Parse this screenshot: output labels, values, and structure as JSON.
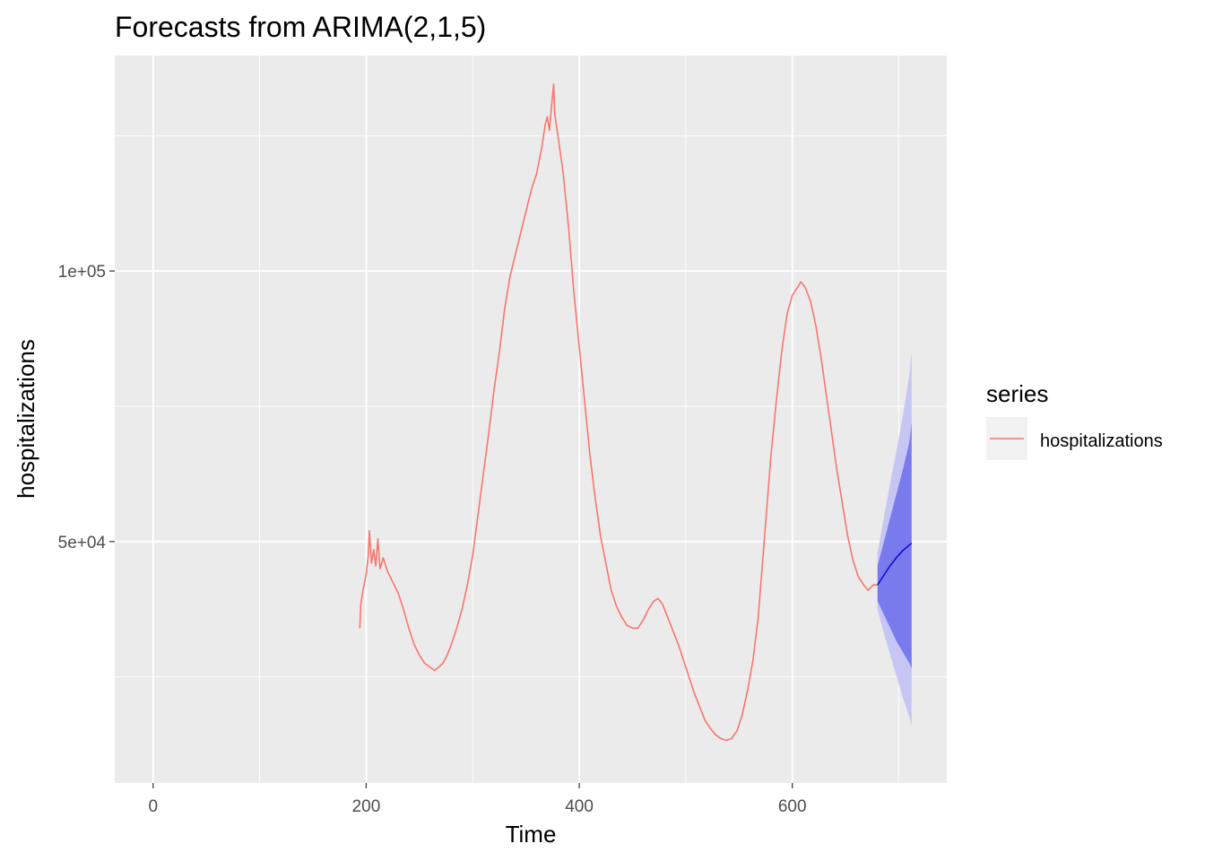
{
  "chart_data": {
    "type": "line",
    "title": "Forecasts from ARIMA(2,1,5)",
    "xlabel": "Time",
    "ylabel": "hospitalizations",
    "xlim": [
      -36,
      745
    ],
    "ylim": [
      5400,
      139800
    ],
    "x_ticks": [
      0,
      200,
      400,
      600
    ],
    "x_tick_labels": [
      "0",
      "200",
      "400",
      "600"
    ],
    "y_ticks": [
      50000,
      100000
    ],
    "y_tick_labels": [
      "5e+04",
      "1e+05"
    ],
    "grid": true,
    "background": "#ebebeb",
    "legend": {
      "title": "series",
      "placement": "right",
      "entries": [
        {
          "label": "hospitalizations",
          "color": "#f8766d"
        }
      ]
    },
    "series": [
      {
        "name": "hospitalizations",
        "color": "#f8766d",
        "points": [
          [
            194,
            34000
          ],
          [
            195,
            38500
          ],
          [
            197,
            41000
          ],
          [
            200,
            44000
          ],
          [
            202,
            47500
          ],
          [
            203,
            52000
          ],
          [
            205,
            46000
          ],
          [
            207,
            48500
          ],
          [
            209,
            45500
          ],
          [
            211,
            50500
          ],
          [
            213,
            45000
          ],
          [
            216,
            47000
          ],
          [
            220,
            44500
          ],
          [
            225,
            42500
          ],
          [
            230,
            40500
          ],
          [
            235,
            37500
          ],
          [
            240,
            34000
          ],
          [
            245,
            31000
          ],
          [
            250,
            29000
          ],
          [
            255,
            27500
          ],
          [
            260,
            26800
          ],
          [
            264,
            26200
          ],
          [
            268,
            26800
          ],
          [
            272,
            27500
          ],
          [
            276,
            29000
          ],
          [
            280,
            31000
          ],
          [
            285,
            34000
          ],
          [
            290,
            37500
          ],
          [
            295,
            42000
          ],
          [
            300,
            47500
          ],
          [
            305,
            55000
          ],
          [
            310,
            62500
          ],
          [
            315,
            70000
          ],
          [
            320,
            78000
          ],
          [
            325,
            85000
          ],
          [
            330,
            93000
          ],
          [
            335,
            99000
          ],
          [
            340,
            103000
          ],
          [
            345,
            107000
          ],
          [
            350,
            111000
          ],
          [
            355,
            115000
          ],
          [
            360,
            118000
          ],
          [
            365,
            123000
          ],
          [
            368,
            127000
          ],
          [
            370,
            128500
          ],
          [
            372,
            126000
          ],
          [
            374,
            130500
          ],
          [
            376,
            134500
          ],
          [
            377,
            129000
          ],
          [
            380,
            125000
          ],
          [
            385,
            118000
          ],
          [
            390,
            108000
          ],
          [
            395,
            96000
          ],
          [
            400,
            86000
          ],
          [
            405,
            76000
          ],
          [
            410,
            66000
          ],
          [
            415,
            58000
          ],
          [
            420,
            51000
          ],
          [
            425,
            46000
          ],
          [
            430,
            41000
          ],
          [
            435,
            38000
          ],
          [
            440,
            36000
          ],
          [
            445,
            34500
          ],
          [
            450,
            34000
          ],
          [
            455,
            34000
          ],
          [
            460,
            35500
          ],
          [
            465,
            37500
          ],
          [
            470,
            39000
          ],
          [
            474,
            39500
          ],
          [
            478,
            38500
          ],
          [
            483,
            36000
          ],
          [
            488,
            33500
          ],
          [
            493,
            31000
          ],
          [
            498,
            28000
          ],
          [
            503,
            25000
          ],
          [
            508,
            22000
          ],
          [
            513,
            19500
          ],
          [
            518,
            17000
          ],
          [
            523,
            15500
          ],
          [
            528,
            14300
          ],
          [
            533,
            13600
          ],
          [
            538,
            13300
          ],
          [
            543,
            13600
          ],
          [
            548,
            15000
          ],
          [
            553,
            18000
          ],
          [
            558,
            22500
          ],
          [
            563,
            28000
          ],
          [
            568,
            36000
          ],
          [
            572,
            46000
          ],
          [
            576,
            56000
          ],
          [
            580,
            66000
          ],
          [
            585,
            76000
          ],
          [
            590,
            85000
          ],
          [
            595,
            92000
          ],
          [
            600,
            95500
          ],
          [
            605,
            97000
          ],
          [
            608,
            98000
          ],
          [
            612,
            97000
          ],
          [
            617,
            94500
          ],
          [
            622,
            90000
          ],
          [
            627,
            84000
          ],
          [
            632,
            77000
          ],
          [
            637,
            70000
          ],
          [
            642,
            63000
          ],
          [
            647,
            57000
          ],
          [
            652,
            51000
          ],
          [
            657,
            46500
          ],
          [
            662,
            43500
          ],
          [
            667,
            42000
          ],
          [
            671,
            41000
          ],
          [
            676,
            42000
          ],
          [
            680,
            42000
          ]
        ]
      },
      {
        "name": "",
        "color": "#0000cc",
        "points": [
          [
            680,
            42000
          ],
          [
            686,
            43800
          ],
          [
            692,
            45600
          ],
          [
            698,
            47100
          ],
          [
            704,
            48400
          ],
          [
            710,
            49400
          ],
          [
            712,
            49700
          ]
        ]
      }
    ],
    "intervals": [
      {
        "level": 95,
        "color": "#c6c6f4",
        "x": [
          680,
          686,
          692,
          698,
          704,
          710,
          712
        ],
        "upper": [
          48000,
          54500,
          61000,
          67000,
          73500,
          81000,
          85000
        ],
        "lower": [
          37500,
          33000,
          29000,
          25000,
          21000,
          17500,
          16000
        ]
      },
      {
        "level": 80,
        "color": "#7a7aef",
        "x": [
          680,
          686,
          692,
          698,
          704,
          710,
          712
        ],
        "upper": [
          45500,
          50000,
          54500,
          59000,
          63500,
          68500,
          72000
        ],
        "lower": [
          39000,
          36500,
          34000,
          31500,
          29500,
          27500,
          26500
        ]
      }
    ]
  }
}
